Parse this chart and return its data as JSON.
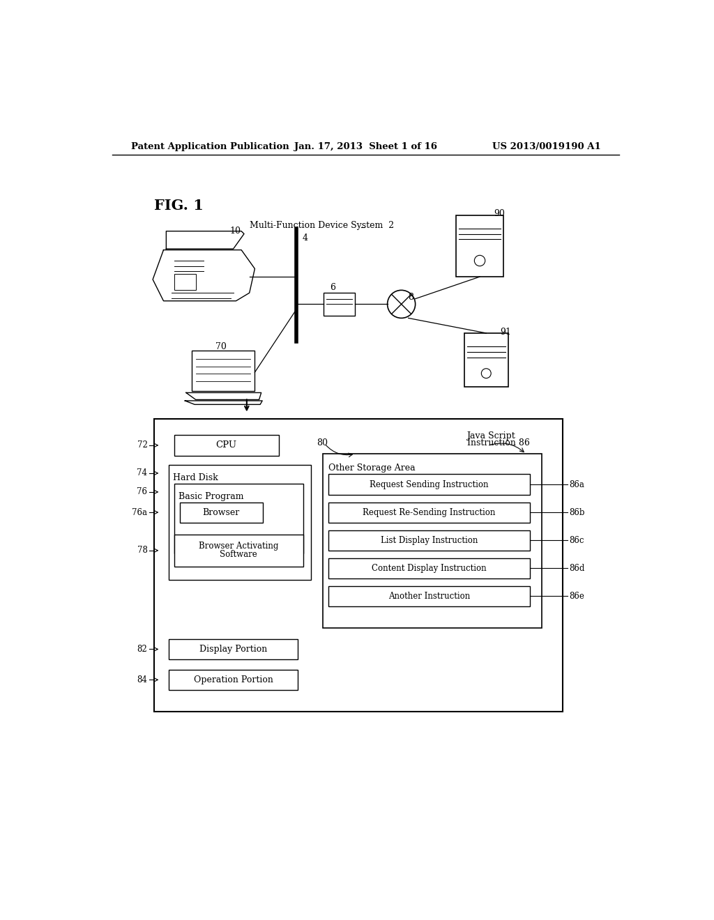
{
  "background_color": "#ffffff",
  "header_left": "Patent Application Publication",
  "header_mid": "Jan. 17, 2013  Sheet 1 of 16",
  "header_right": "US 2013/0019190 A1",
  "fig_label": "FIG. 1",
  "system_label": "Multi-Function Device System  2"
}
